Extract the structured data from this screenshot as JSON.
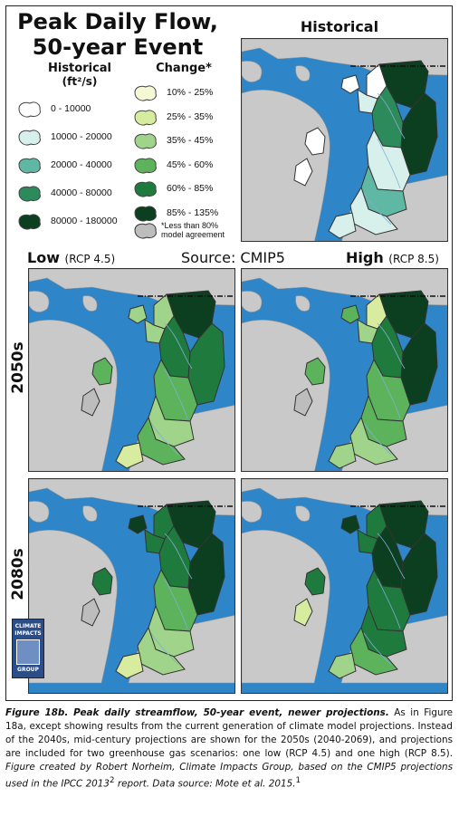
{
  "title": {
    "line1": "Peak Daily Flow,",
    "line2": "50-year Event"
  },
  "legend": {
    "historical_header": "Historical",
    "historical_unit": "(ft²/s)",
    "change_header": "Change*",
    "historical_items": [
      {
        "label": "0 - 10000",
        "color": "#ffffff"
      },
      {
        "label": "10000 - 20000",
        "color": "#d8f0ec"
      },
      {
        "label": "20000 - 40000",
        "color": "#5fb8a3"
      },
      {
        "label": "40000 - 80000",
        "color": "#2d8a5a"
      },
      {
        "label": "80000 - 180000",
        "color": "#0c3f20"
      }
    ],
    "change_items": [
      {
        "label": "10% - 25%",
        "color": "#f4f8d4"
      },
      {
        "label": "25% - 35%",
        "color": "#d7ec9f"
      },
      {
        "label": "35% - 45%",
        "color": "#9fd48a"
      },
      {
        "label": "45% - 60%",
        "color": "#5cb35c"
      },
      {
        "label": "60% - 85%",
        "color": "#1f7a3e"
      },
      {
        "label": "85% - 135%",
        "color": "#0c3f20"
      }
    ],
    "note": "*Less than 80% model agreement",
    "note_color": "#bdbdbd"
  },
  "maps": {
    "historical_title": "Historical",
    "source": "Source: CMIP5",
    "low": {
      "main": "Low",
      "sub": "(RCP 4.5)"
    },
    "high": {
      "main": "High",
      "sub": "(RCP 8.5)"
    },
    "row1": "2050s",
    "row2": "2080s"
  },
  "colors": {
    "water": "#2e85c8",
    "land": "#c9c9c9",
    "frame": "#222222"
  },
  "logo": {
    "line1": "CLIMATE",
    "line2": "IMPACTS",
    "line3": "GROUP"
  },
  "caption": {
    "bold": "Figure 18b. Peak daily streamflow, 50-year event, newer projections.",
    "text1": " As in Figure 18a, except showing results from the current generation of climate model projections. Instead of the 2040s, mid-century projections are shown for the 2050s (2040-2069), and projections are included for two greenhouse gas scenarios: one low (RCP 4.5) and one high (RCP 8.5). ",
    "italic": "Figure created by Robert Norheim, Climate Impacts Group, based on the CMIP5 projections used in the IPCC 2013",
    "sup1": "2",
    "italic2": " report. Data source: Mote et al. 2015.",
    "sup2": "1"
  }
}
